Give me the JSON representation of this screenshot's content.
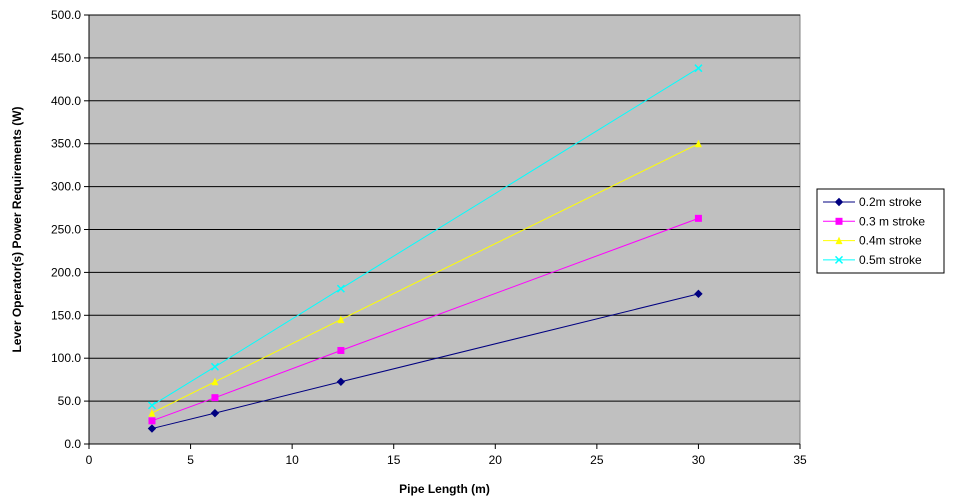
{
  "chart_data": {
    "type": "line",
    "xlabel": "Pipe Length (m)",
    "ylabel": "Lever Operator(s) Power Requirements (W)",
    "xlim": [
      0,
      35
    ],
    "ylim": [
      0,
      500
    ],
    "xticks": [
      "0",
      "5",
      "10",
      "15",
      "20",
      "25",
      "30",
      "35"
    ],
    "yticks": [
      "0.0",
      "50.0",
      "100.0",
      "150.0",
      "200.0",
      "250.0",
      "300.0",
      "350.0",
      "400.0",
      "450.0",
      "500.0"
    ],
    "grid": "horizontal",
    "plot_background": "#c0c0c0",
    "legend_position": "right",
    "x": [
      3.1,
      6.2,
      12.4,
      30
    ],
    "series": [
      {
        "name": "0.2m stroke",
        "values": [
          18,
          36,
          72.5,
          175
        ],
        "color": "#000080",
        "marker": "diamond"
      },
      {
        "name": "0.3 m stroke",
        "values": [
          27,
          54,
          109,
          263
        ],
        "color": "#ff00ff",
        "marker": "square"
      },
      {
        "name": "0.4m stroke",
        "values": [
          36,
          72.5,
          145,
          350
        ],
        "color": "#ffff00",
        "marker": "triangle"
      },
      {
        "name": "0.5m stroke",
        "values": [
          45,
          90,
          181,
          438
        ],
        "color": "#00ffff",
        "marker": "x"
      }
    ]
  }
}
